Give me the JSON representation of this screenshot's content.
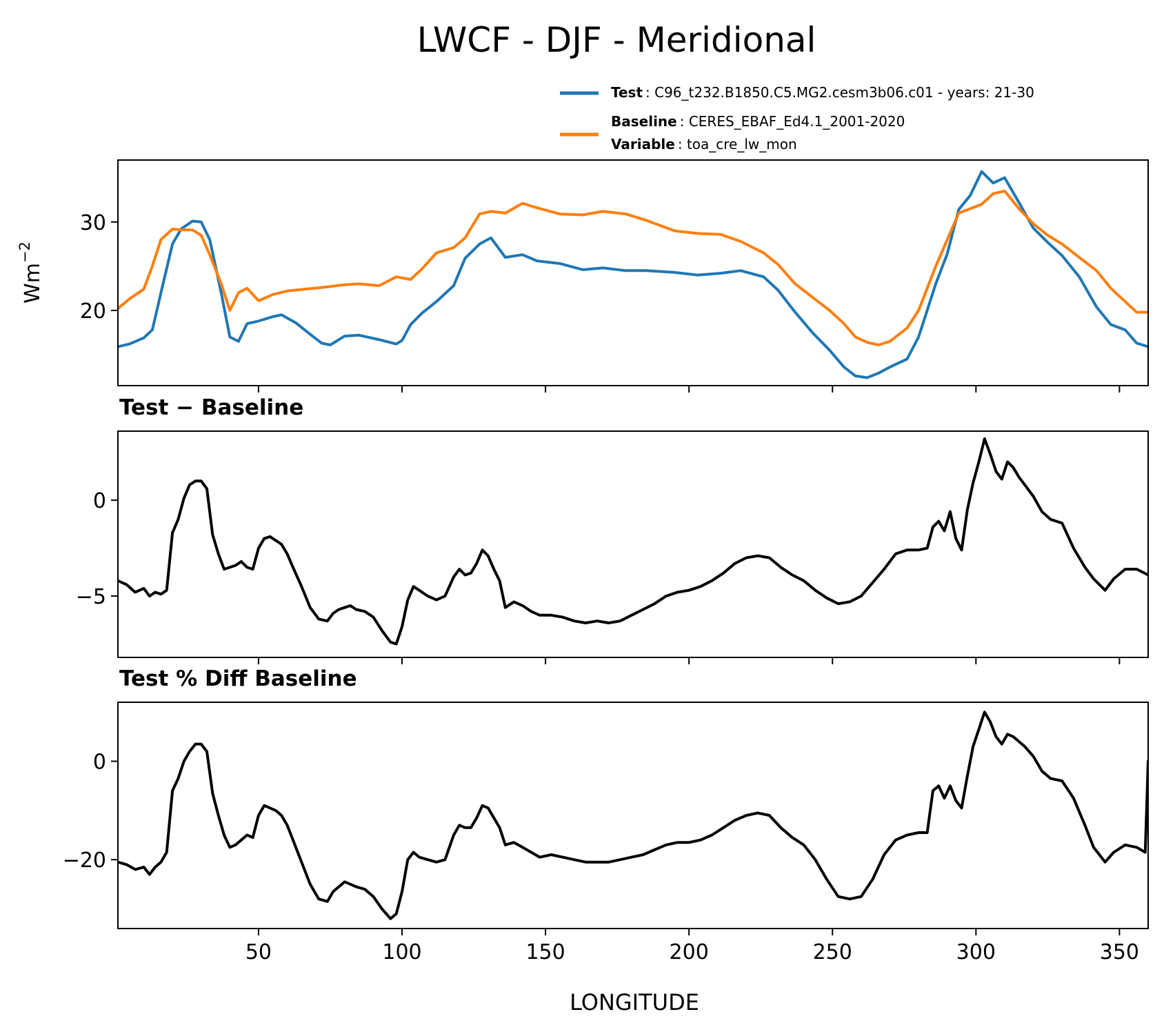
{
  "figure": {
    "title": "LWCF - DJF - Meridional",
    "xlabel": "LONGITUDE"
  },
  "legend": {
    "test_key": "Test",
    "test_value": ": C96_t232.B1850.C5.MG2.cesm3b06.c01 - years: 21-30",
    "baseline_key": "Baseline",
    "baseline_value": ": CERES_EBAF_Ed4.1_2001-2020",
    "variable_key": "Variable",
    "variable_value": ": toa_cre_lw_mon"
  },
  "colors": {
    "test": "#1f77b4",
    "baseline": "#ff7f0e",
    "diff": "#000000"
  },
  "chart_data": [
    {
      "type": "line",
      "ylabel_base": "Wm",
      "ylabel_sup": "−2",
      "xlim": [
        1,
        360
      ],
      "ylim": [
        11.5,
        37
      ],
      "xticks": [
        50,
        100,
        150,
        200,
        250,
        300,
        350
      ],
      "xtick_labels": [
        "",
        "",
        "",
        "",
        "",
        "",
        ""
      ],
      "yticks": [
        20,
        30
      ],
      "ytick_labels": [
        "20",
        "30"
      ],
      "series": [
        {
          "name": "Test",
          "color": "#1f77b4",
          "x": [
            1,
            5,
            10,
            13,
            16,
            20,
            23,
            27,
            30,
            33,
            37,
            40,
            43,
            46,
            50,
            55,
            58,
            63,
            68,
            72,
            75,
            80,
            85,
            92,
            98,
            100,
            103,
            107,
            112,
            118,
            122,
            127,
            131,
            136,
            142,
            147,
            155,
            163,
            170,
            178,
            185,
            195,
            203,
            211,
            218,
            226,
            231,
            237,
            243,
            249,
            254,
            258,
            262,
            266,
            270,
            276,
            280,
            286,
            290,
            294,
            298,
            302,
            306,
            310,
            315,
            320,
            325,
            330,
            336,
            342,
            347,
            352,
            356,
            360
          ],
          "values": [
            15.9,
            16.2,
            16.9,
            17.8,
            22.0,
            27.5,
            29.2,
            30.1,
            30.0,
            28.0,
            22.0,
            17.0,
            16.5,
            18.5,
            18.8,
            19.3,
            19.5,
            18.6,
            17.3,
            16.3,
            16.1,
            17.1,
            17.2,
            16.7,
            16.2,
            16.6,
            18.4,
            19.7,
            21.0,
            22.8,
            25.9,
            27.5,
            28.2,
            26.0,
            26.3,
            25.6,
            25.3,
            24.6,
            24.8,
            24.5,
            24.5,
            24.3,
            24.0,
            24.2,
            24.5,
            23.8,
            22.3,
            19.8,
            17.5,
            15.5,
            13.6,
            12.6,
            12.4,
            12.9,
            13.6,
            14.5,
            17.0,
            23.0,
            26.4,
            31.4,
            33.0,
            35.7,
            34.4,
            35.0,
            32.2,
            29.3,
            27.7,
            26.2,
            23.8,
            20.4,
            18.4,
            17.8,
            16.3,
            15.9
          ]
        },
        {
          "name": "Baseline",
          "color": "#ff7f0e",
          "x": [
            1,
            5,
            10,
            13,
            16,
            20,
            23,
            27,
            30,
            33,
            37,
            40,
            43,
            46,
            50,
            55,
            60,
            66,
            72,
            80,
            85,
            92,
            98,
            103,
            107,
            112,
            118,
            122,
            127,
            131,
            136,
            142,
            147,
            155,
            163,
            170,
            178,
            185,
            195,
            203,
            211,
            218,
            226,
            231,
            237,
            243,
            249,
            254,
            258,
            262,
            266,
            270,
            276,
            280,
            286,
            290,
            294,
            298,
            302,
            306,
            310,
            315,
            320,
            325,
            330,
            336,
            342,
            347,
            352,
            356,
            360
          ],
          "values": [
            20.2,
            21.3,
            22.4,
            25.0,
            28.0,
            29.2,
            29.1,
            29.1,
            28.5,
            26.3,
            23.0,
            20.0,
            22.0,
            22.5,
            21.1,
            21.8,
            22.2,
            22.4,
            22.6,
            22.9,
            23.0,
            22.8,
            23.8,
            23.5,
            24.7,
            26.5,
            27.1,
            28.2,
            30.9,
            31.2,
            31.0,
            32.1,
            31.6,
            30.9,
            30.8,
            31.2,
            30.9,
            30.2,
            29.0,
            28.7,
            28.6,
            27.8,
            26.5,
            25.2,
            23.0,
            21.5,
            20.0,
            18.5,
            17.0,
            16.4,
            16.1,
            16.5,
            18.0,
            20.0,
            25.0,
            28.0,
            31.0,
            31.5,
            32.0,
            33.2,
            33.5,
            31.5,
            29.8,
            28.5,
            27.5,
            26.0,
            24.5,
            22.5,
            21.0,
            19.8,
            19.8
          ]
        }
      ]
    },
    {
      "type": "line",
      "title": "Test − Baseline",
      "xlim": [
        1,
        360
      ],
      "ylim": [
        -8.2,
        3.6
      ],
      "xticks": [
        50,
        100,
        150,
        200,
        250,
        300,
        350
      ],
      "xtick_labels": [
        "",
        "",
        "",
        "",
        "",
        "",
        ""
      ],
      "yticks": [
        -5,
        0
      ],
      "ytick_labels": [
        "−5",
        "0"
      ],
      "series": [
        {
          "color": "#000000",
          "x": [
            1,
            4,
            7,
            10,
            12,
            14,
            16,
            18,
            20,
            22,
            24,
            26,
            28,
            30,
            32,
            34,
            36,
            38,
            40,
            42,
            44,
            46,
            48,
            50,
            52,
            54,
            56,
            58,
            60,
            62,
            65,
            68,
            71,
            74,
            76,
            78,
            80,
            82,
            84,
            87,
            90,
            93,
            96,
            98,
            100,
            102,
            104,
            106,
            109,
            112,
            115,
            118,
            120,
            122,
            124,
            126,
            128,
            130,
            132,
            134,
            136,
            139,
            142,
            145,
            148,
            152,
            156,
            160,
            164,
            168,
            172,
            176,
            180,
            184,
            188,
            192,
            196,
            200,
            204,
            208,
            212,
            216,
            220,
            224,
            228,
            232,
            236,
            240,
            244,
            248,
            252,
            256,
            260,
            264,
            268,
            272,
            276,
            280,
            283,
            285,
            287,
            289,
            291,
            293,
            295,
            297,
            299,
            301,
            303,
            305,
            307,
            309,
            311,
            313,
            315,
            317,
            320,
            323,
            326,
            330,
            334,
            338,
            341,
            343,
            345,
            348,
            352,
            356,
            360
          ],
          "values": [
            -4.2,
            -4.4,
            -4.8,
            -4.6,
            -5.0,
            -4.8,
            -4.9,
            -4.7,
            -1.7,
            -1.0,
            0.1,
            0.8,
            1.0,
            1.0,
            0.6,
            -1.8,
            -2.8,
            -3.6,
            -3.5,
            -3.4,
            -3.2,
            -3.5,
            -3.6,
            -2.5,
            -2.0,
            -1.9,
            -2.1,
            -2.3,
            -2.8,
            -3.5,
            -4.5,
            -5.6,
            -6.2,
            -6.3,
            -5.9,
            -5.7,
            -5.6,
            -5.5,
            -5.7,
            -5.8,
            -6.1,
            -6.8,
            -7.4,
            -7.5,
            -6.6,
            -5.2,
            -4.5,
            -4.7,
            -5.0,
            -5.2,
            -5.0,
            -4.0,
            -3.6,
            -3.9,
            -3.8,
            -3.3,
            -2.6,
            -2.9,
            -3.6,
            -4.2,
            -5.6,
            -5.3,
            -5.5,
            -5.8,
            -6.0,
            -6.0,
            -6.1,
            -6.3,
            -6.4,
            -6.3,
            -6.4,
            -6.3,
            -6.0,
            -5.7,
            -5.4,
            -5.0,
            -4.8,
            -4.7,
            -4.5,
            -4.2,
            -3.8,
            -3.3,
            -3.0,
            -2.9,
            -3.0,
            -3.5,
            -3.9,
            -4.2,
            -4.7,
            -5.1,
            -5.4,
            -5.3,
            -5.0,
            -4.3,
            -3.6,
            -2.8,
            -2.6,
            -2.6,
            -2.5,
            -1.4,
            -1.1,
            -1.6,
            -0.6,
            -2.0,
            -2.6,
            -0.5,
            0.9,
            2.0,
            3.2,
            2.4,
            1.5,
            1.1,
            2.0,
            1.7,
            1.2,
            0.8,
            0.2,
            -0.6,
            -1.0,
            -1.2,
            -2.5,
            -3.5,
            -4.1,
            -4.4,
            -4.7,
            -4.1,
            -3.6,
            -3.6,
            -3.9
          ]
        }
      ]
    },
    {
      "type": "line",
      "title": "Test % Diff Baseline",
      "xlim": [
        1,
        360
      ],
      "ylim": [
        -34,
        12
      ],
      "xticks": [
        50,
        100,
        150,
        200,
        250,
        300,
        350
      ],
      "xtick_labels": [
        "50",
        "100",
        "150",
        "200",
        "250",
        "300",
        "350"
      ],
      "yticks": [
        -20,
        0
      ],
      "ytick_labels": [
        "−20",
        "0"
      ],
      "series": [
        {
          "color": "#000000",
          "x": [
            1,
            4,
            7,
            10,
            12,
            14,
            16,
            18,
            20,
            22,
            24,
            26,
            28,
            30,
            32,
            34,
            36,
            38,
            40,
            42,
            44,
            46,
            48,
            50,
            52,
            54,
            56,
            58,
            60,
            62,
            65,
            68,
            71,
            74,
            76,
            78,
            80,
            82,
            84,
            87,
            90,
            93,
            96,
            98,
            100,
            102,
            104,
            106,
            109,
            112,
            115,
            118,
            120,
            122,
            124,
            126,
            128,
            130,
            132,
            134,
            136,
            139,
            142,
            145,
            148,
            152,
            156,
            160,
            164,
            168,
            172,
            176,
            180,
            184,
            188,
            192,
            196,
            200,
            204,
            208,
            212,
            216,
            220,
            224,
            228,
            232,
            236,
            240,
            244,
            248,
            252,
            256,
            260,
            264,
            268,
            272,
            276,
            280,
            283,
            285,
            287,
            289,
            291,
            293,
            295,
            297,
            299,
            301,
            303,
            305,
            307,
            309,
            311,
            313,
            315,
            317,
            320,
            323,
            326,
            330,
            334,
            338,
            341,
            343,
            345,
            348,
            352,
            356,
            359,
            360
          ],
          "values": [
            -20.5,
            -21.0,
            -22.0,
            -21.5,
            -23.0,
            -21.5,
            -20.5,
            -18.5,
            -6.0,
            -3.5,
            0.0,
            2.0,
            3.5,
            3.5,
            2.0,
            -6.5,
            -11.0,
            -15.0,
            -17.5,
            -17.0,
            -16.0,
            -15.0,
            -15.5,
            -11.0,
            -9.0,
            -9.5,
            -10.0,
            -11.0,
            -13.0,
            -16.0,
            -20.5,
            -25.0,
            -28.0,
            -28.5,
            -26.5,
            -25.5,
            -24.5,
            -25.0,
            -25.5,
            -26.0,
            -27.5,
            -30.0,
            -32.0,
            -31.0,
            -26.5,
            -20.0,
            -18.5,
            -19.5,
            -20.0,
            -20.5,
            -20.0,
            -15.0,
            -13.0,
            -13.5,
            -13.5,
            -11.5,
            -9.0,
            -9.5,
            -11.5,
            -13.5,
            -17.0,
            -16.5,
            -17.5,
            -18.5,
            -19.5,
            -19.0,
            -19.5,
            -20.0,
            -20.5,
            -20.5,
            -20.5,
            -20.0,
            -19.5,
            -19.0,
            -18.0,
            -17.0,
            -16.5,
            -16.5,
            -16.0,
            -15.0,
            -13.5,
            -12.0,
            -11.0,
            -10.5,
            -11.0,
            -13.5,
            -15.5,
            -17.0,
            -20.0,
            -24.0,
            -27.5,
            -28.0,
            -27.5,
            -24.0,
            -19.0,
            -16.0,
            -15.0,
            -14.5,
            -14.5,
            -6.0,
            -5.0,
            -7.5,
            -5.0,
            -8.0,
            -9.5,
            -3.0,
            3.0,
            6.5,
            10.0,
            8.0,
            5.0,
            3.5,
            5.5,
            5.0,
            4.0,
            3.0,
            1.0,
            -2.0,
            -3.5,
            -4.0,
            -7.5,
            -13.0,
            -17.5,
            -19.0,
            -20.5,
            -18.5,
            -17.0,
            -17.5,
            -18.5,
            0.0
          ]
        }
      ]
    }
  ]
}
